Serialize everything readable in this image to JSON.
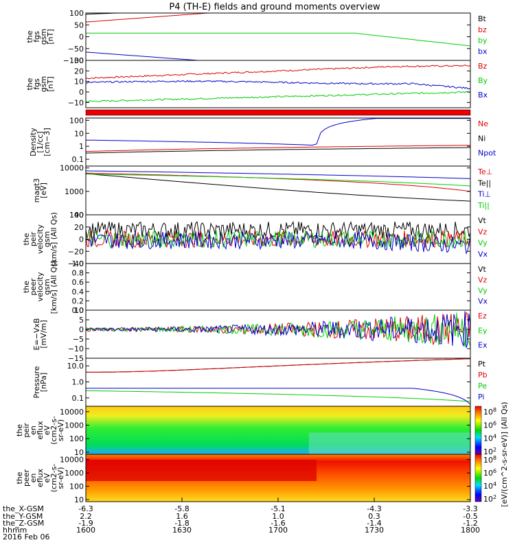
{
  "chart_data": {
    "type": "line",
    "title": "P4 (TH-E) fields and ground moments overview",
    "panels": [
      {
        "id": "fgs_gsm_1",
        "ylabel": [
          "the",
          "fgs",
          "gsm",
          "[nT]"
        ],
        "scale": "linear",
        "ylim": [
          -100,
          100
        ],
        "yticks": [
          "100",
          "50",
          "0",
          "−50",
          "−100"
        ],
        "ytick_vals": [
          100,
          50,
          0,
          -50,
          -100
        ],
        "legend": [
          {
            "name": "Bt",
            "color": "#000000"
          },
          {
            "name": "bz",
            "color": "#dd0000"
          },
          {
            "name": "by",
            "color": "#00cc00"
          },
          {
            "name": "bx",
            "color": "#0000cc"
          }
        ]
      },
      {
        "id": "fgs_gsm_2",
        "ylabel": [
          "the",
          "fgs",
          "gsm",
          "[nT]"
        ],
        "scale": "linear",
        "ylim": [
          -15,
          30
        ],
        "yticks": [
          "30",
          "20",
          "10",
          "0",
          "−10"
        ],
        "ytick_vals": [
          30,
          20,
          10,
          0,
          -10
        ],
        "legend": [
          {
            "name": "Bz",
            "color": "#dd0000"
          },
          {
            "name": "By",
            "color": "#00cc00"
          },
          {
            "name": "Bx",
            "color": "#0000cc"
          }
        ]
      },
      {
        "id": "density",
        "ylabel": [
          "Density",
          "[1/cc]",
          "[cm−3]"
        ],
        "scale": "log",
        "ylim": [
          0.03,
          150
        ],
        "yticks": [
          "100",
          "10",
          "1",
          "0.1"
        ],
        "ytick_vals": [
          100,
          10,
          1,
          0.1
        ],
        "legend": [
          {
            "name": "Ne",
            "color": "#dd0000"
          },
          {
            "name": "Ni",
            "color": "#000000"
          },
          {
            "name": "Npot",
            "color": "#0000cc"
          }
        ]
      },
      {
        "id": "temperature",
        "ylabel": [
          "magt3",
          "[eV]"
        ],
        "scale": "log",
        "ylim": [
          100,
          12000
        ],
        "yticks": [
          "10000",
          "1000",
          "100"
        ],
        "ytick_vals": [
          10000,
          1000,
          100
        ],
        "legend": [
          {
            "name": "Te⊥",
            "color": "#dd0000"
          },
          {
            "name": "Te||",
            "color": "#000000"
          },
          {
            "name": "Ti⊥",
            "color": "#0000cc"
          },
          {
            "name": "Ti||",
            "color": "#00cc00"
          }
        ]
      },
      {
        "id": "peir_velocity",
        "ylabel": [
          "the",
          "peir",
          "velocity",
          "gsm",
          "[km/s] (All Qs)"
        ],
        "scale": "linear",
        "ylim": [
          -40,
          40
        ],
        "yticks": [
          "40",
          "20",
          "0",
          "−20",
          "−40"
        ],
        "ytick_vals": [
          40,
          20,
          0,
          -20,
          -40
        ],
        "legend": [
          {
            "name": "Vt",
            "color": "#000000"
          },
          {
            "name": "Vz",
            "color": "#dd0000"
          },
          {
            "name": "Vy",
            "color": "#00cc00"
          },
          {
            "name": "Vx",
            "color": "#0000cc"
          }
        ]
      },
      {
        "id": "peer_velocity",
        "ylabel": [
          "the",
          "peer",
          "velocity",
          "gsm",
          "[km/s] (All Qs)"
        ],
        "scale": "linear",
        "ylim": [
          0,
          1
        ],
        "yticks": [
          "1.0",
          "0.8",
          "0.6",
          "0.4",
          "0.2",
          "0.0"
        ],
        "ytick_vals": [
          1,
          0.8,
          0.6,
          0.4,
          0.2,
          0
        ],
        "legend": [
          {
            "name": "Vt",
            "color": "#000000"
          },
          {
            "name": "Vz",
            "color": "#dd0000"
          },
          {
            "name": "Vy",
            "color": "#00cc00"
          },
          {
            "name": "Vx",
            "color": "#0000cc"
          }
        ]
      },
      {
        "id": "efield",
        "ylabel": [
          "E=−VxB",
          "[mV/m]"
        ],
        "scale": "linear",
        "ylim": [
          -15,
          10
        ],
        "yticks": [
          "10",
          "5",
          "0",
          "−5",
          "−10",
          "−15"
        ],
        "ytick_vals": [
          10,
          5,
          0,
          -5,
          -10,
          -15
        ],
        "legend": [
          {
            "name": "Ez",
            "color": "#dd0000"
          },
          {
            "name": "Ey",
            "color": "#00cc00"
          },
          {
            "name": "Ex",
            "color": "#0000cc"
          }
        ]
      },
      {
        "id": "pressure",
        "ylabel": [
          "Pressure",
          "[nPa]"
        ],
        "scale": "log",
        "ylim": [
          0.03,
          30
        ],
        "yticks": [
          "10.0",
          "1.0",
          "0.1"
        ],
        "ytick_vals": [
          10,
          1,
          0.1
        ],
        "legend": [
          {
            "name": "Pt",
            "color": "#000000"
          },
          {
            "name": "Pb",
            "color": "#dd0000"
          },
          {
            "name": "Pe",
            "color": "#00cc00"
          },
          {
            "name": "Pi",
            "color": "#0000cc"
          }
        ]
      },
      {
        "id": "peir_spectrogram",
        "ylabel": [
          "the",
          "peir",
          "en",
          "eflux",
          "eV",
          "(cm2-s-",
          "sr-eV)"
        ],
        "scale": "log",
        "ylim": [
          7,
          25000
        ],
        "yticks": [
          "10000",
          "1000",
          "100",
          "10"
        ],
        "ytick_vals": [
          10000,
          1000,
          100,
          10
        ]
      },
      {
        "id": "peer_spectrogram",
        "ylabel": [
          "the",
          "peer",
          "en",
          "eflux",
          "eV",
          "(cm2-s-",
          "sr-eV)"
        ],
        "scale": "log",
        "ylim": [
          7,
          25000
        ],
        "yticks": [
          "10000",
          "1000",
          "100",
          "10"
        ],
        "ytick_vals": [
          10000,
          1000,
          100,
          10
        ]
      }
    ],
    "colorbar_label": "[eV/(cm^2-s-sr-eV)] (All Qs)",
    "colorbar_ticks": [
      {
        "base": "10",
        "exp": "8"
      },
      {
        "base": "10",
        "exp": "6"
      },
      {
        "base": "10",
        "exp": "4"
      },
      {
        "base": "10",
        "exp": "2"
      },
      {
        "base": "10",
        "exp": "8"
      },
      {
        "base": "10",
        "exp": "6"
      },
      {
        "base": "10",
        "exp": "4"
      },
      {
        "base": "10",
        "exp": "2"
      }
    ],
    "x_axis": {
      "row_labels": [
        "the_X-GSM",
        "the_Y-GSM",
        "the_Z-GSM",
        "hhmm"
      ],
      "date": "2016 Feb 06",
      "ticks": [
        {
          "x": "-6.3",
          "y": "2.2",
          "z": "-1.9",
          "hhmm": "1600"
        },
        {
          "x": "-5.8",
          "y": "1.6",
          "z": "-1.8",
          "hhmm": "1630"
        },
        {
          "x": "-5.1",
          "y": "1.0",
          "z": "-1.6",
          "hhmm": "1700"
        },
        {
          "x": "-4.3",
          "y": "0.3",
          "z": "-1.4",
          "hhmm": "1730"
        },
        {
          "x": "-3.3",
          "y": "-0.5",
          "z": "-1.2",
          "hhmm": "1800"
        }
      ]
    }
  }
}
